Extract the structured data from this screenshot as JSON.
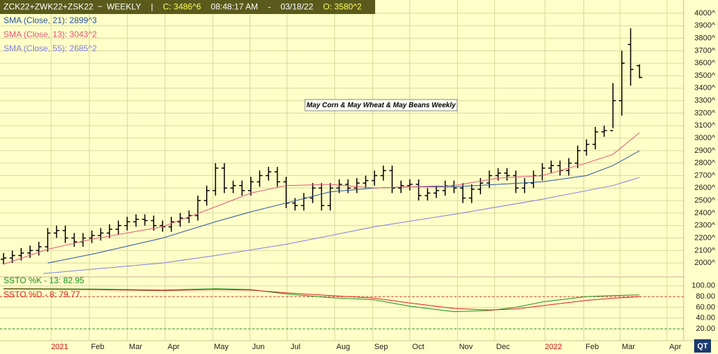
{
  "header": {
    "symbol": "ZCK22+ZWK22+ZSK22",
    "sep1": "~",
    "period": "WEEKLY",
    "sep2": "|",
    "close": "C: 3486^6",
    "time": "08:48:17 AM",
    "sep3": "-",
    "date": "03/18/22",
    "open": "O: 3580^2"
  },
  "logo": "QT",
  "chart_data": [
    {
      "type": "ohlc",
      "annotation": "May Corn & May Wheat & May Beans Weekly",
      "color": "#000000",
      "grid": true,
      "ylim": [
        1900,
        4050
      ],
      "yticks": [
        {
          "value": 2000,
          "label": "2000^"
        },
        {
          "value": 2100,
          "label": "2100^"
        },
        {
          "value": 2200,
          "label": "2200^"
        },
        {
          "value": 2300,
          "label": "2300^"
        },
        {
          "value": 2400,
          "label": "2400^"
        },
        {
          "value": 2500,
          "label": "2500^"
        },
        {
          "value": 2600,
          "label": "2600^"
        },
        {
          "value": 2700,
          "label": "2700^"
        },
        {
          "value": 2800,
          "label": "2800^"
        },
        {
          "value": 2900,
          "label": "2900^"
        },
        {
          "value": 3000,
          "label": "3000^"
        },
        {
          "value": 3100,
          "label": "3100^"
        },
        {
          "value": 3200,
          "label": "3200^"
        },
        {
          "value": 3300,
          "label": "3300^"
        },
        {
          "value": 3400,
          "label": "3400^"
        },
        {
          "value": 3500,
          "label": "3500^"
        },
        {
          "value": 3600,
          "label": "3600^"
        },
        {
          "value": 3700,
          "label": "3700^"
        },
        {
          "value": 3800,
          "label": "3800^"
        },
        {
          "value": 3900,
          "label": "3900^"
        },
        {
          "value": 4000,
          "label": "4000^"
        }
      ],
      "open": [
        2030,
        2040,
        2060,
        2080,
        2100,
        2130,
        2240,
        2260,
        2200,
        2170,
        2200,
        2220,
        2240,
        2270,
        2300,
        2330,
        2350,
        2340,
        2300,
        2290,
        2330,
        2360,
        2380,
        2500,
        2580,
        2760,
        2600,
        2620,
        2580,
        2650,
        2700,
        2730,
        2650,
        2480,
        2460,
        2520,
        2600,
        2460,
        2600,
        2630,
        2600,
        2640,
        2660,
        2700,
        2740,
        2600,
        2620,
        2630,
        2540,
        2560,
        2580,
        2620,
        2600,
        2520,
        2590,
        2640,
        2700,
        2720,
        2700,
        2600,
        2640,
        2700,
        2760,
        2780,
        2740,
        2800,
        2900,
        2950,
        3050,
        3060,
        3300,
        3750,
        3580
      ],
      "high": [
        2080,
        2100,
        2120,
        2140,
        2170,
        2280,
        2300,
        2300,
        2240,
        2240,
        2260,
        2280,
        2310,
        2340,
        2370,
        2390,
        2390,
        2380,
        2340,
        2370,
        2400,
        2420,
        2540,
        2620,
        2800,
        2800,
        2660,
        2660,
        2690,
        2740,
        2770,
        2770,
        2690,
        2520,
        2560,
        2640,
        2640,
        2640,
        2670,
        2670,
        2680,
        2700,
        2740,
        2780,
        2780,
        2660,
        2670,
        2670,
        2600,
        2620,
        2660,
        2660,
        2640,
        2630,
        2680,
        2740,
        2760,
        2760,
        2740,
        2680,
        2740,
        2800,
        2820,
        2820,
        2840,
        2940,
        2990,
        3090,
        3100,
        3440,
        3700,
        3880,
        3590
      ],
      "low": [
        1990,
        2000,
        2020,
        2040,
        2060,
        2090,
        2200,
        2160,
        2130,
        2130,
        2160,
        2180,
        2200,
        2230,
        2260,
        2290,
        2300,
        2260,
        2250,
        2250,
        2290,
        2320,
        2340,
        2460,
        2540,
        2560,
        2560,
        2540,
        2540,
        2610,
        2660,
        2610,
        2440,
        2420,
        2420,
        2480,
        2420,
        2420,
        2560,
        2560,
        2560,
        2600,
        2620,
        2660,
        2560,
        2560,
        2580,
        2500,
        2500,
        2520,
        2540,
        2560,
        2480,
        2480,
        2550,
        2600,
        2660,
        2660,
        2560,
        2560,
        2600,
        2660,
        2720,
        2700,
        2700,
        2760,
        2860,
        2910,
        3010,
        3080,
        3180,
        3420,
        3480
      ],
      "close": [
        2040,
        2060,
        2080,
        2100,
        2130,
        2240,
        2260,
        2200,
        2170,
        2200,
        2220,
        2240,
        2270,
        2300,
        2330,
        2350,
        2340,
        2300,
        2290,
        2330,
        2360,
        2380,
        2500,
        2580,
        2760,
        2600,
        2620,
        2580,
        2650,
        2700,
        2730,
        2650,
        2480,
        2460,
        2520,
        2600,
        2460,
        2600,
        2630,
        2600,
        2640,
        2660,
        2700,
        2740,
        2600,
        2620,
        2630,
        2540,
        2560,
        2580,
        2620,
        2600,
        2520,
        2590,
        2640,
        2700,
        2720,
        2700,
        2600,
        2640,
        2700,
        2760,
        2780,
        2740,
        2800,
        2900,
        2950,
        3050,
        3060,
        3300,
        3600,
        3550,
        3486
      ],
      "series": [
        {
          "name": "SMA (Close, 21): 2899^3",
          "color": "#2a55a0",
          "x": [
            5,
            10,
            18,
            24,
            28,
            32,
            37,
            42,
            46,
            51,
            56,
            61,
            66,
            69,
            72
          ],
          "values": [
            2000,
            2070,
            2200,
            2330,
            2410,
            2480,
            2570,
            2600,
            2610,
            2610,
            2630,
            2650,
            2700,
            2780,
            2899
          ]
        },
        {
          "name": "SMA (Close, 13): 3043^2",
          "color": "#e05a78",
          "x": [
            0,
            5,
            10,
            18,
            24,
            28,
            32,
            37,
            42,
            46,
            51,
            56,
            61,
            66,
            69,
            72
          ],
          "values": [
            1990,
            2110,
            2190,
            2290,
            2450,
            2560,
            2620,
            2630,
            2600,
            2610,
            2620,
            2680,
            2700,
            2800,
            2870,
            3043
          ]
        },
        {
          "name": "SMA (Close, 55): 2685^2",
          "color": "#8080e0",
          "x": [
            4.5,
            10,
            18,
            24,
            32,
            42,
            51,
            61,
            69,
            72
          ],
          "values": [
            1915,
            1950,
            2000,
            2060,
            2150,
            2290,
            2390,
            2510,
            2620,
            2685
          ]
        }
      ]
    },
    {
      "type": "line",
      "grid": true,
      "ylim": [
        -2,
        114
      ],
      "yticks": [
        {
          "value": 20,
          "label": "20.00"
        },
        {
          "value": 40,
          "label": "40.00"
        },
        {
          "value": 60,
          "label": "60.00"
        },
        {
          "value": 80,
          "label": "80.00"
        },
        {
          "value": 100,
          "label": "100.00"
        }
      ],
      "ref_lines": [
        {
          "value": 80,
          "color": "#e03030"
        },
        {
          "value": 20,
          "color": "#20a020"
        }
      ],
      "xlim": [
        -0.4,
        77
      ],
      "xticks": [
        {
          "value": 5.4,
          "label": "2021",
          "color": "#d01010"
        },
        {
          "value": 9.7,
          "label": "Feb"
        },
        {
          "value": 14,
          "label": "Mar"
        },
        {
          "value": 18.3,
          "label": "Apr"
        },
        {
          "value": 23.7,
          "label": "May"
        },
        {
          "value": 27.9,
          "label": "Jun"
        },
        {
          "value": 32.1,
          "label": "Jul"
        },
        {
          "value": 37.5,
          "label": "Aug"
        },
        {
          "value": 41.8,
          "label": "Sep"
        },
        {
          "value": 46,
          "label": "Oct"
        },
        {
          "value": 51.4,
          "label": "Nov"
        },
        {
          "value": 55.6,
          "label": "Dec"
        },
        {
          "value": 61.3,
          "label": "2022",
          "color": "#d01010"
        },
        {
          "value": 65.7,
          "label": "Feb"
        },
        {
          "value": 69.8,
          "label": "Mar"
        },
        {
          "value": 75.1,
          "label": "Apr"
        }
      ],
      "series": [
        {
          "name": "SSTO %K - 13: 82.95",
          "color": "#1f8f1f",
          "x": [
            0,
            10,
            18,
            24,
            28,
            32,
            37,
            42,
            46,
            51,
            55,
            58,
            61,
            66,
            69,
            72
          ],
          "values": [
            95,
            94,
            92,
            95,
            93,
            85,
            78,
            74,
            62,
            52,
            54,
            60,
            70,
            80,
            82,
            82.95
          ]
        },
        {
          "name": "SSTO %D - 8: 79.77",
          "color": "#e02020",
          "x": [
            0,
            10,
            18,
            24,
            28,
            32,
            37,
            42,
            46,
            51,
            55,
            58,
            61,
            66,
            69,
            72
          ],
          "values": [
            94,
            93,
            91,
            93,
            92,
            87,
            82,
            77,
            68,
            58,
            55,
            57,
            63,
            73,
            77,
            79.77
          ]
        }
      ]
    }
  ]
}
